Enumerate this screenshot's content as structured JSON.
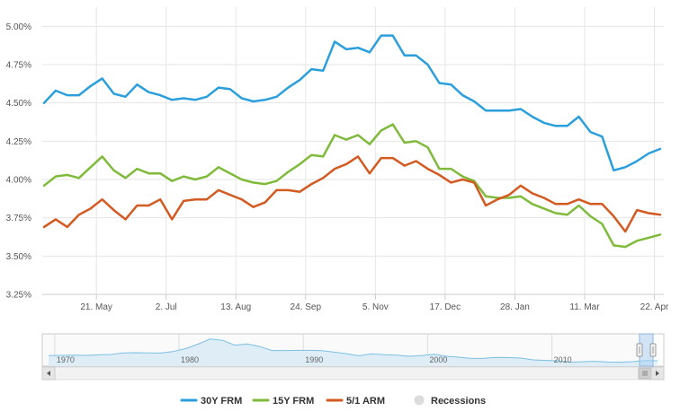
{
  "chart_data": {
    "type": "line",
    "y_ticks": [
      "3.25%",
      "3.50%",
      "3.75%",
      "4.00%",
      "4.25%",
      "4.50%",
      "4.75%",
      "5.00%"
    ],
    "y_tick_values": [
      3.25,
      3.5,
      3.75,
      4.0,
      4.25,
      4.5,
      4.75,
      5.0
    ],
    "ylim": [
      3.25,
      5.125
    ],
    "x_ticks": [
      {
        "label": "21. May",
        "index": 4.5
      },
      {
        "label": "2. Jul",
        "index": 10.5
      },
      {
        "label": "13. Aug",
        "index": 16.5
      },
      {
        "label": "24. Sep",
        "index": 22.5
      },
      {
        "label": "5. Nov",
        "index": 28.5
      },
      {
        "label": "17. Dec",
        "index": 34.5
      },
      {
        "label": "28. Jan",
        "index": 40.5
      },
      {
        "label": "11. Mar",
        "index": 46.5
      },
      {
        "label": "22. Apr",
        "index": 52.5
      }
    ],
    "points": 54,
    "series": [
      {
        "name": "30Y FRM",
        "color": "#2b9fdc",
        "values": [
          4.5,
          4.58,
          4.55,
          4.55,
          4.61,
          4.66,
          4.56,
          4.54,
          4.62,
          4.57,
          4.55,
          4.52,
          4.53,
          4.52,
          4.54,
          4.6,
          4.59,
          4.53,
          4.51,
          4.52,
          4.54,
          4.6,
          4.65,
          4.72,
          4.71,
          4.9,
          4.85,
          4.86,
          4.83,
          4.94,
          4.94,
          4.81,
          4.81,
          4.75,
          4.63,
          4.62,
          4.55,
          4.51,
          4.45,
          4.45,
          4.45,
          4.46,
          4.41,
          4.37,
          4.35,
          4.35,
          4.41,
          4.31,
          4.28,
          4.06,
          4.08,
          4.12,
          4.17,
          4.2
        ]
      },
      {
        "name": "15Y FRM",
        "color": "#7fba3b",
        "values": [
          3.96,
          4.02,
          4.03,
          4.01,
          4.08,
          4.15,
          4.06,
          4.01,
          4.07,
          4.04,
          4.04,
          3.99,
          4.02,
          4.0,
          4.02,
          4.08,
          4.04,
          4.0,
          3.98,
          3.97,
          3.99,
          4.05,
          4.1,
          4.16,
          4.15,
          4.29,
          4.26,
          4.29,
          4.23,
          4.32,
          4.36,
          4.24,
          4.25,
          4.21,
          4.07,
          4.07,
          4.02,
          3.99,
          3.89,
          3.88,
          3.88,
          3.89,
          3.84,
          3.81,
          3.78,
          3.77,
          3.83,
          3.76,
          3.71,
          3.57,
          3.56,
          3.6,
          3.62,
          3.64
        ]
      },
      {
        "name": "5/1 ARM",
        "color": "#d35a21",
        "values": [
          3.69,
          3.74,
          3.69,
          3.77,
          3.81,
          3.87,
          3.8,
          3.74,
          3.83,
          3.83,
          3.87,
          3.74,
          3.86,
          3.87,
          3.87,
          3.93,
          3.9,
          3.87,
          3.82,
          3.85,
          3.93,
          3.93,
          3.92,
          3.97,
          4.01,
          4.07,
          4.1,
          4.15,
          4.04,
          4.14,
          4.14,
          4.09,
          4.12,
          4.07,
          4.03,
          3.98,
          4.0,
          3.98,
          3.83,
          3.87,
          3.9,
          3.96,
          3.91,
          3.88,
          3.84,
          3.84,
          3.87,
          3.84,
          3.84,
          3.76,
          3.66,
          3.8,
          3.78,
          3.77
        ]
      }
    ],
    "navigator": {
      "labels": [
        "1970",
        "1980",
        "1990",
        "2000",
        "2010"
      ],
      "label_years": [
        1970,
        1980,
        1990,
        2000,
        2010
      ],
      "year_range": [
        1969,
        2019
      ],
      "values": [
        7.4,
        7.5,
        7.6,
        7.5,
        7.8,
        8.0,
        8.9,
        9.0,
        8.9,
        8.8,
        9.6,
        11.2,
        13.7,
        16.6,
        15.9,
        13.2,
        13.9,
        12.4,
        10.2,
        10.2,
        10.3,
        10.3,
        10.1,
        9.3,
        8.4,
        7.3,
        8.4,
        7.9,
        7.6,
        7.0,
        7.4,
        8.1,
        7.0,
        6.5,
        5.8,
        5.9,
        6.4,
        6.3,
        6.0,
        5.0,
        4.7,
        4.5,
        3.7,
        4.0,
        4.2,
        3.8,
        3.7,
        4.0,
        4.6,
        4.5
      ]
    },
    "legend": [
      {
        "label": "30Y FRM",
        "color": "#2b9fdc",
        "kind": "line"
      },
      {
        "label": "15Y FRM",
        "color": "#7fba3b",
        "kind": "line"
      },
      {
        "label": "5/1 ARM",
        "color": "#d35a21",
        "kind": "line"
      },
      {
        "label": "Recessions",
        "color": "#dcdcdc",
        "kind": "dot"
      }
    ]
  }
}
